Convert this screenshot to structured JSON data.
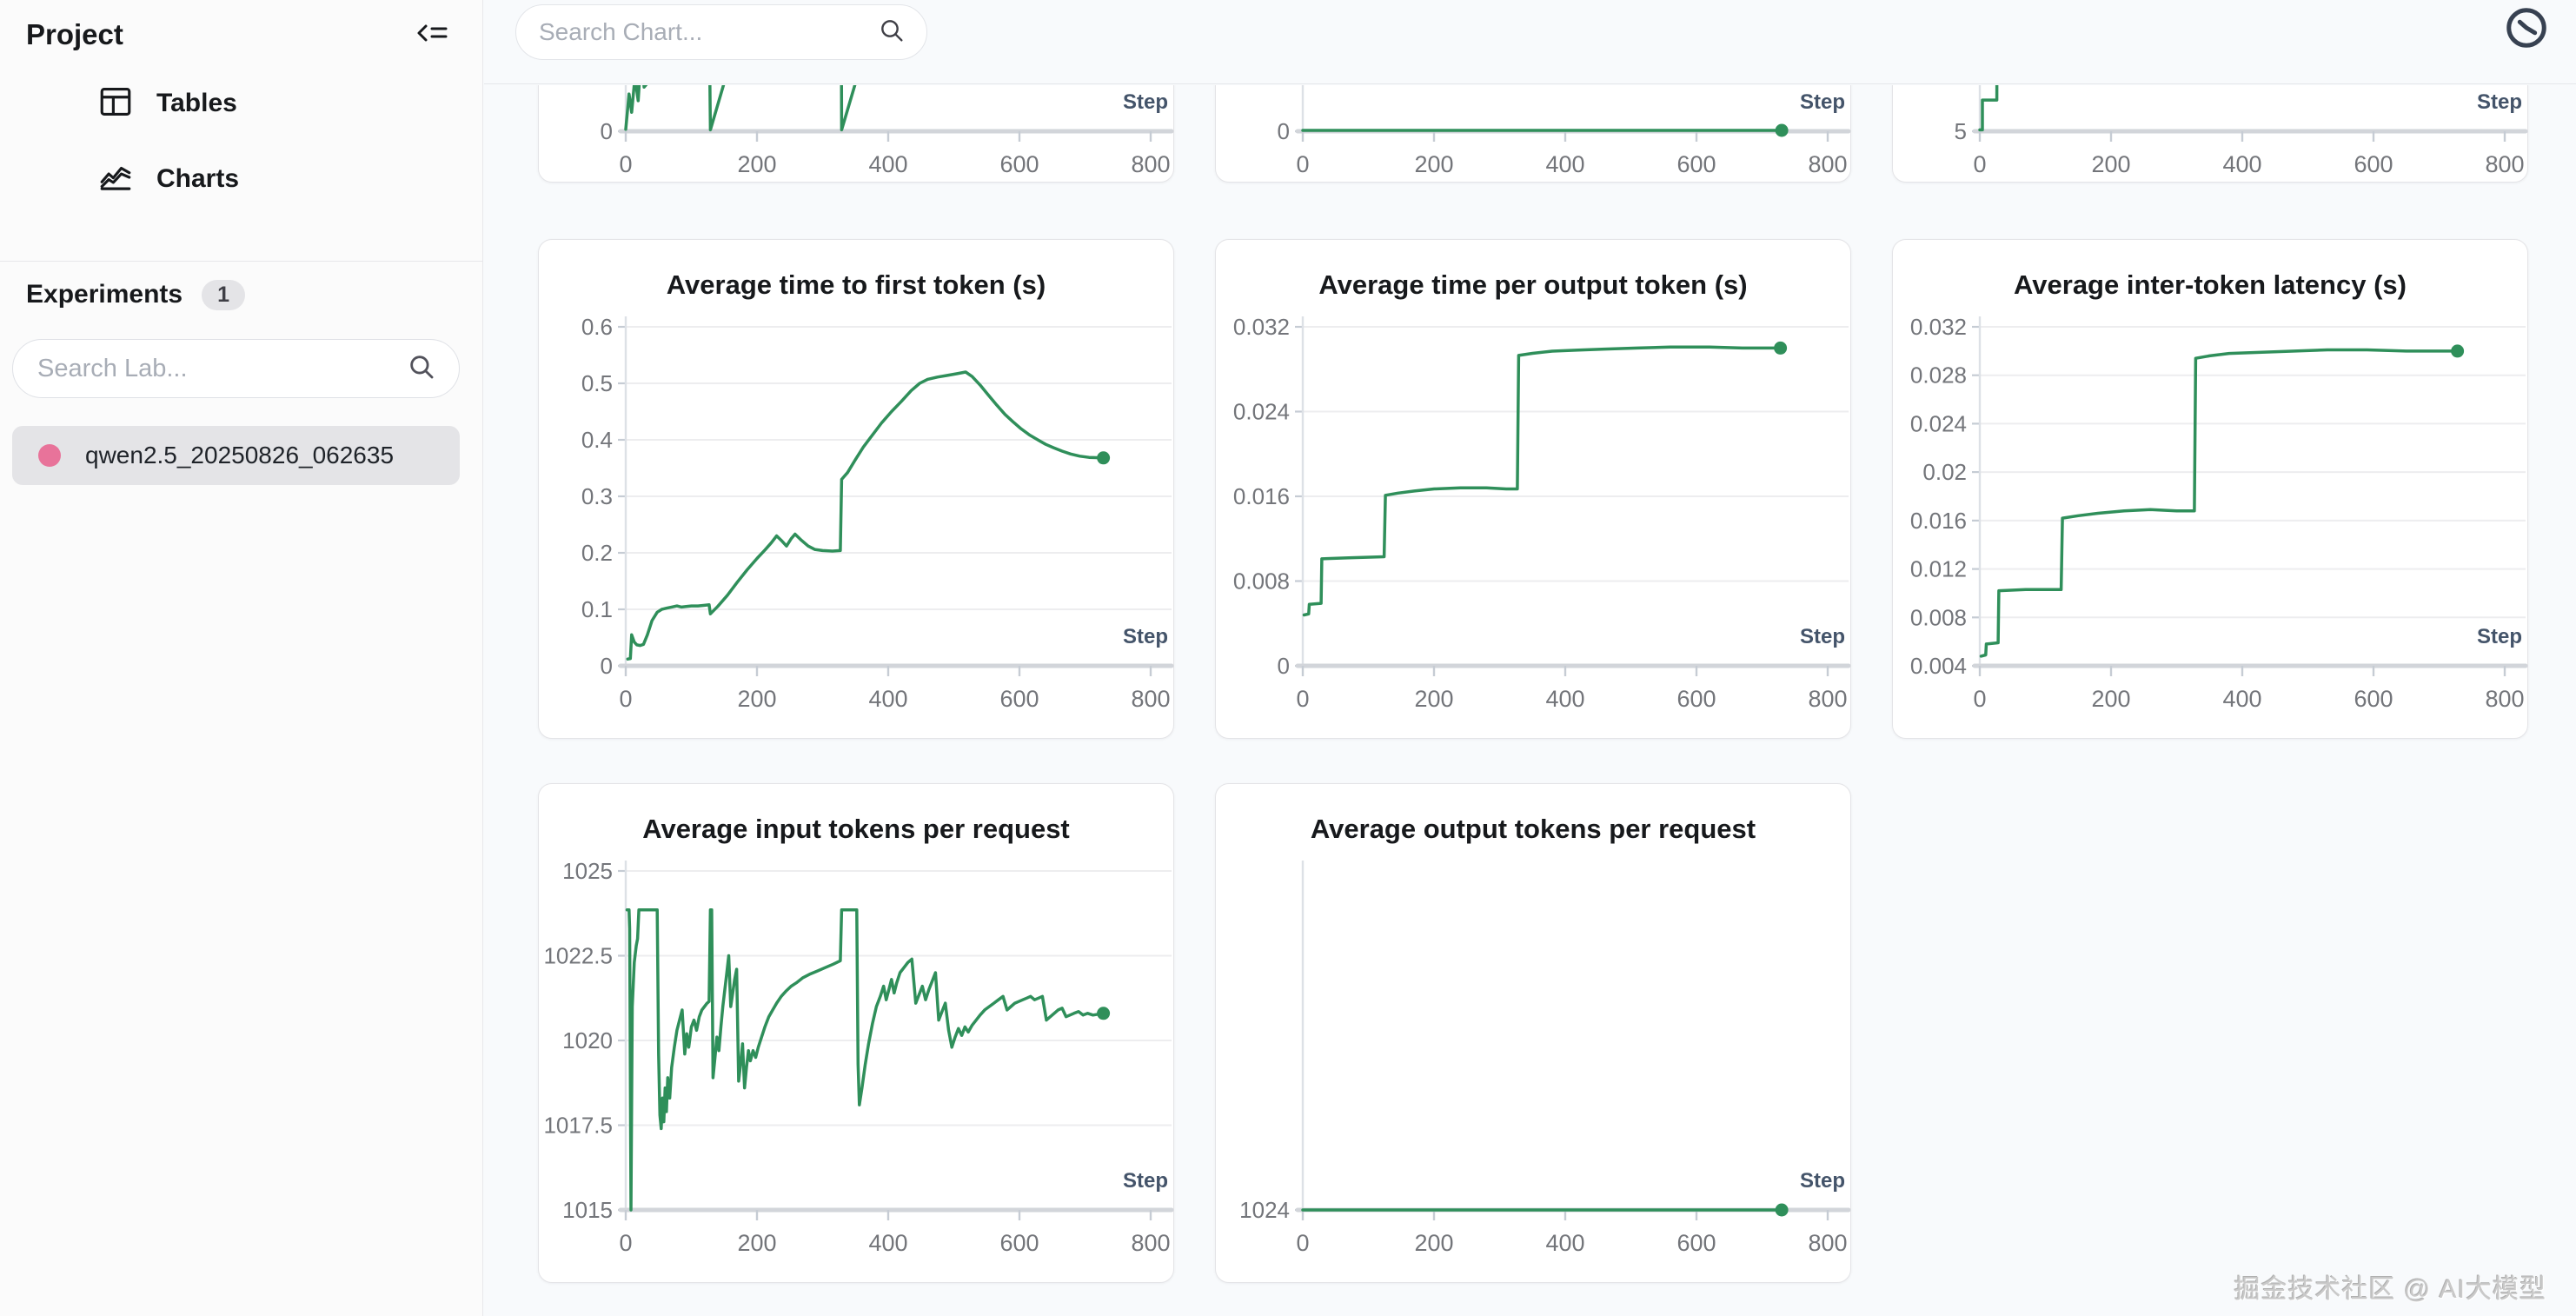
{
  "sidebar": {
    "title": "Project",
    "nav": [
      {
        "label": "Tables"
      },
      {
        "label": "Charts"
      }
    ],
    "experiments_label": "Experiments",
    "experiments_count": "1",
    "search_placeholder": "Search Lab...",
    "experiment": {
      "name": "qwen2.5_20250826_062635"
    }
  },
  "topbar": {
    "search_placeholder": "Search Chart..."
  },
  "watermark": "掘金技术社区 @ AI大模型",
  "colors": {
    "line": "#2f8f5a",
    "experiment_dot": "#e8739a",
    "grid": "#ededef",
    "axis": "#d2d5da",
    "axis_y": "#dde1e6",
    "tick_mark": "#c6ccd4",
    "tick_text": "#73757a",
    "step_label": "#44546a"
  },
  "chart_data": [
    {
      "id": "metric-top-1",
      "type": "line",
      "title": "",
      "xlabel": "Step",
      "xlim": [
        0,
        800
      ],
      "x_ticks": [
        0,
        200,
        400,
        600,
        800
      ],
      "ylim": [
        0,
        5
      ],
      "y_ticks": [
        0
      ],
      "end_dot": false,
      "points": [
        [
          0,
          0.03
        ],
        [
          5,
          0.55
        ],
        [
          9,
          0.28
        ],
        [
          14,
          0.8
        ],
        [
          19,
          0.45
        ],
        [
          24,
          1.2
        ],
        [
          28,
          0.65
        ],
        [
          127,
          1.8
        ],
        [
          129,
          0.02
        ],
        [
          210,
          2.7
        ],
        [
          327,
          6.4
        ],
        [
          329,
          0.02
        ],
        [
          420,
          3.0
        ],
        [
          730,
          5.6
        ]
      ]
    },
    {
      "id": "metric-top-2",
      "type": "line",
      "title": "",
      "xlabel": "Step",
      "xlim": [
        0,
        800
      ],
      "x_ticks": [
        0,
        200,
        400,
        600,
        800
      ],
      "ylim": [
        0,
        8
      ],
      "y_ticks": [
        0
      ],
      "end_dot": true,
      "points": [
        [
          0,
          0.02
        ],
        [
          730,
          0.02
        ]
      ]
    },
    {
      "id": "metric-top-3",
      "type": "line",
      "title": "",
      "xlabel": "Step",
      "xlim": [
        0,
        800
      ],
      "x_ticks": [
        0,
        200,
        400,
        600,
        800
      ],
      "ylim": [
        5,
        30
      ],
      "y_ticks": [
        5
      ],
      "end_dot": false,
      "points": [
        [
          0,
          5.1
        ],
        [
          4,
          5.1
        ],
        [
          4,
          7.3
        ],
        [
          26,
          7.3
        ],
        [
          27,
          30
        ]
      ]
    },
    {
      "id": "avg-time-to-first-token",
      "type": "line",
      "title": "Average time to first token (s)",
      "xlabel": "Step",
      "xlim": [
        0,
        800
      ],
      "x_ticks": [
        0,
        200,
        400,
        600,
        800
      ],
      "ylim": [
        0,
        0.6
      ],
      "y_ticks": [
        0,
        0.1,
        0.2,
        0.3,
        0.4,
        0.5,
        0.6
      ],
      "end_dot": true,
      "points": [
        [
          3,
          0.012
        ],
        [
          7,
          0.013
        ],
        [
          9,
          0.055
        ],
        [
          13,
          0.042
        ],
        [
          17,
          0.037
        ],
        [
          22,
          0.036
        ],
        [
          27,
          0.038
        ],
        [
          33,
          0.055
        ],
        [
          40,
          0.08
        ],
        [
          48,
          0.095
        ],
        [
          55,
          0.1
        ],
        [
          62,
          0.102
        ],
        [
          70,
          0.104
        ],
        [
          78,
          0.106
        ],
        [
          85,
          0.104
        ],
        [
          92,
          0.105
        ],
        [
          100,
          0.106
        ],
        [
          110,
          0.106
        ],
        [
          120,
          0.107
        ],
        [
          127,
          0.108
        ],
        [
          129,
          0.092
        ],
        [
          140,
          0.105
        ],
        [
          155,
          0.125
        ],
        [
          170,
          0.148
        ],
        [
          185,
          0.17
        ],
        [
          200,
          0.19
        ],
        [
          212,
          0.205
        ],
        [
          222,
          0.218
        ],
        [
          230,
          0.23
        ],
        [
          238,
          0.221
        ],
        [
          245,
          0.212
        ],
        [
          252,
          0.225
        ],
        [
          258,
          0.233
        ],
        [
          268,
          0.222
        ],
        [
          278,
          0.212
        ],
        [
          288,
          0.206
        ],
        [
          300,
          0.204
        ],
        [
          315,
          0.203
        ],
        [
          327,
          0.204
        ],
        [
          329,
          0.33
        ],
        [
          338,
          0.342
        ],
        [
          350,
          0.365
        ],
        [
          362,
          0.387
        ],
        [
          375,
          0.407
        ],
        [
          390,
          0.43
        ],
        [
          405,
          0.45
        ],
        [
          420,
          0.468
        ],
        [
          435,
          0.487
        ],
        [
          448,
          0.5
        ],
        [
          460,
          0.507
        ],
        [
          475,
          0.511
        ],
        [
          490,
          0.514
        ],
        [
          505,
          0.517
        ],
        [
          518,
          0.52
        ],
        [
          528,
          0.512
        ],
        [
          540,
          0.497
        ],
        [
          552,
          0.48
        ],
        [
          565,
          0.462
        ],
        [
          578,
          0.445
        ],
        [
          590,
          0.432
        ],
        [
          602,
          0.42
        ],
        [
          615,
          0.409
        ],
        [
          628,
          0.4
        ],
        [
          640,
          0.392
        ],
        [
          652,
          0.386
        ],
        [
          665,
          0.38
        ],
        [
          678,
          0.375
        ],
        [
          692,
          0.371
        ],
        [
          706,
          0.369
        ],
        [
          728,
          0.368
        ]
      ]
    },
    {
      "id": "avg-time-per-output-token",
      "type": "line",
      "title": "Average time per output token (s)",
      "xlabel": "Step",
      "xlim": [
        0,
        800
      ],
      "x_ticks": [
        0,
        200,
        400,
        600,
        800
      ],
      "ylim": [
        0,
        0.032
      ],
      "y_ticks": [
        0,
        0.008,
        0.016,
        0.024,
        0.032
      ],
      "end_dot": true,
      "points": [
        [
          2,
          0.0048
        ],
        [
          9,
          0.0049
        ],
        [
          10,
          0.0058
        ],
        [
          28,
          0.0059
        ],
        [
          29,
          0.0101
        ],
        [
          70,
          0.0102
        ],
        [
          124,
          0.0103
        ],
        [
          126,
          0.0161
        ],
        [
          145,
          0.0163
        ],
        [
          170,
          0.0165
        ],
        [
          200,
          0.0167
        ],
        [
          240,
          0.0168
        ],
        [
          280,
          0.0168
        ],
        [
          310,
          0.0167
        ],
        [
          327,
          0.0167
        ],
        [
          329,
          0.0293
        ],
        [
          350,
          0.0295
        ],
        [
          380,
          0.0297
        ],
        [
          420,
          0.0298
        ],
        [
          460,
          0.0299
        ],
        [
          510,
          0.03
        ],
        [
          560,
          0.0301
        ],
        [
          620,
          0.0301
        ],
        [
          670,
          0.03
        ],
        [
          728,
          0.03
        ]
      ]
    },
    {
      "id": "avg-inter-token-latency",
      "type": "line",
      "title": "Average inter-token latency (s)",
      "xlabel": "Step",
      "xlim": [
        0,
        800
      ],
      "x_ticks": [
        0,
        200,
        400,
        600,
        800
      ],
      "ylim": [
        0.004,
        0.032
      ],
      "y_ticks": [
        0.004,
        0.008,
        0.012,
        0.016,
        0.02,
        0.024,
        0.028,
        0.032
      ],
      "end_dot": true,
      "points": [
        [
          2,
          0.0048
        ],
        [
          9,
          0.0049
        ],
        [
          10,
          0.0058
        ],
        [
          28,
          0.0059
        ],
        [
          29,
          0.0102
        ],
        [
          70,
          0.0103
        ],
        [
          124,
          0.0103
        ],
        [
          126,
          0.0162
        ],
        [
          150,
          0.0164
        ],
        [
          180,
          0.0166
        ],
        [
          220,
          0.0168
        ],
        [
          260,
          0.0169
        ],
        [
          300,
          0.0168
        ],
        [
          327,
          0.0168
        ],
        [
          329,
          0.0294
        ],
        [
          350,
          0.0296
        ],
        [
          380,
          0.0298
        ],
        [
          430,
          0.0299
        ],
        [
          480,
          0.03
        ],
        [
          530,
          0.0301
        ],
        [
          590,
          0.0301
        ],
        [
          650,
          0.03
        ],
        [
          728,
          0.03
        ]
      ]
    },
    {
      "id": "avg-input-tokens-per-request",
      "type": "line",
      "title": "Average input tokens per request",
      "xlabel": "Step",
      "xlim": [
        0,
        800
      ],
      "x_ticks": [
        0,
        200,
        400,
        600,
        800
      ],
      "ylim": [
        1015,
        1025
      ],
      "y_ticks": [
        1015,
        1017.5,
        1020,
        1022.5,
        1025
      ],
      "end_dot": true,
      "points": [
        [
          2,
          1023.85
        ],
        [
          5,
          1023.85
        ],
        [
          6,
          1023.3
        ],
        [
          8,
          1015.0
        ],
        [
          10,
          1021.0
        ],
        [
          13,
          1022.3
        ],
        [
          16,
          1022.8
        ],
        [
          18,
          1023.0
        ],
        [
          20,
          1023.85
        ],
        [
          48,
          1023.85
        ],
        [
          50,
          1019.6
        ],
        [
          52,
          1017.8
        ],
        [
          54,
          1017.4
        ],
        [
          56,
          1018.3
        ],
        [
          58,
          1017.6
        ],
        [
          60,
          1018.6
        ],
        [
          62,
          1017.9
        ],
        [
          64,
          1018.9
        ],
        [
          67,
          1018.3
        ],
        [
          70,
          1019.2
        ],
        [
          74,
          1019.8
        ],
        [
          78,
          1020.3
        ],
        [
          82,
          1020.6
        ],
        [
          86,
          1020.9
        ],
        [
          90,
          1019.6
        ],
        [
          93,
          1020.2
        ],
        [
          96,
          1019.8
        ],
        [
          100,
          1020.4
        ],
        [
          104,
          1020.6
        ],
        [
          108,
          1020.3
        ],
        [
          112,
          1020.7
        ],
        [
          116,
          1020.9
        ],
        [
          120,
          1021.0
        ],
        [
          124,
          1021.1
        ],
        [
          127,
          1021.15
        ],
        [
          129,
          1023.85
        ],
        [
          131,
          1023.85
        ],
        [
          133,
          1018.9
        ],
        [
          136,
          1019.5
        ],
        [
          139,
          1020.1
        ],
        [
          142,
          1019.7
        ],
        [
          145,
          1020.4
        ],
        [
          148,
          1021.0
        ],
        [
          151,
          1021.5
        ],
        [
          154,
          1022.0
        ],
        [
          157,
          1022.5
        ],
        [
          160,
          1021.0
        ],
        [
          163,
          1021.4
        ],
        [
          166,
          1021.8
        ],
        [
          169,
          1022.1
        ],
        [
          172,
          1018.8
        ],
        [
          175,
          1019.3
        ],
        [
          178,
          1019.9
        ],
        [
          181,
          1018.6
        ],
        [
          184,
          1019.2
        ],
        [
          187,
          1019.7
        ],
        [
          190,
          1019.4
        ],
        [
          194,
          1019.7
        ],
        [
          198,
          1019.5
        ],
        [
          202,
          1019.8
        ],
        [
          207,
          1020.1
        ],
        [
          212,
          1020.4
        ],
        [
          218,
          1020.7
        ],
        [
          224,
          1020.9
        ],
        [
          230,
          1021.1
        ],
        [
          237,
          1021.3
        ],
        [
          244,
          1021.45
        ],
        [
          252,
          1021.6
        ],
        [
          260,
          1021.7
        ],
        [
          270,
          1021.85
        ],
        [
          280,
          1021.95
        ],
        [
          292,
          1022.05
        ],
        [
          304,
          1022.15
        ],
        [
          316,
          1022.25
        ],
        [
          327,
          1022.35
        ],
        [
          329,
          1023.85
        ],
        [
          352,
          1023.85
        ],
        [
          354,
          1019.3
        ],
        [
          356,
          1018.1
        ],
        [
          360,
          1018.6
        ],
        [
          365,
          1019.3
        ],
        [
          370,
          1019.9
        ],
        [
          376,
          1020.5
        ],
        [
          382,
          1021.0
        ],
        [
          388,
          1021.3
        ],
        [
          393,
          1021.6
        ],
        [
          397,
          1021.2
        ],
        [
          401,
          1021.5
        ],
        [
          405,
          1021.8
        ],
        [
          409,
          1021.4
        ],
        [
          413,
          1021.7
        ],
        [
          418,
          1022.0
        ],
        [
          424,
          1022.15
        ],
        [
          430,
          1022.3
        ],
        [
          436,
          1022.4
        ],
        [
          442,
          1021.1
        ],
        [
          447,
          1021.35
        ],
        [
          452,
          1021.6
        ],
        [
          457,
          1021.2
        ],
        [
          462,
          1021.5
        ],
        [
          467,
          1021.75
        ],
        [
          472,
          1022.0
        ],
        [
          477,
          1020.6
        ],
        [
          482,
          1020.85
        ],
        [
          487,
          1021.1
        ],
        [
          492,
          1020.3
        ],
        [
          497,
          1019.8
        ],
        [
          502,
          1020.1
        ],
        [
          507,
          1020.35
        ],
        [
          512,
          1020.15
        ],
        [
          517,
          1020.4
        ],
        [
          522,
          1020.25
        ],
        [
          528,
          1020.45
        ],
        [
          534,
          1020.6
        ],
        [
          540,
          1020.75
        ],
        [
          547,
          1020.9
        ],
        [
          554,
          1021.0
        ],
        [
          561,
          1021.1
        ],
        [
          568,
          1021.2
        ],
        [
          575,
          1021.3
        ],
        [
          581,
          1020.9
        ],
        [
          587,
          1021.0
        ],
        [
          593,
          1021.1
        ],
        [
          599,
          1021.15
        ],
        [
          605,
          1021.2
        ],
        [
          611,
          1021.25
        ],
        [
          617,
          1021.3
        ],
        [
          623,
          1021.2
        ],
        [
          629,
          1021.25
        ],
        [
          635,
          1021.3
        ],
        [
          641,
          1020.6
        ],
        [
          647,
          1020.7
        ],
        [
          653,
          1020.8
        ],
        [
          659,
          1020.9
        ],
        [
          665,
          1020.95
        ],
        [
          671,
          1020.7
        ],
        [
          677,
          1020.75
        ],
        [
          683,
          1020.8
        ],
        [
          690,
          1020.85
        ],
        [
          697,
          1020.75
        ],
        [
          704,
          1020.8
        ],
        [
          712,
          1020.75
        ],
        [
          728,
          1020.8
        ]
      ]
    },
    {
      "id": "avg-output-tokens-per-request",
      "type": "line",
      "title": "Average output tokens per request",
      "xlabel": "Step",
      "xlim": [
        0,
        800
      ],
      "x_ticks": [
        0,
        200,
        400,
        600,
        800
      ],
      "ylim": [
        1024,
        1032
      ],
      "y_ticks": [
        1024
      ],
      "end_dot": true,
      "points": [
        [
          0,
          1024
        ],
        [
          730,
          1024
        ]
      ]
    }
  ]
}
